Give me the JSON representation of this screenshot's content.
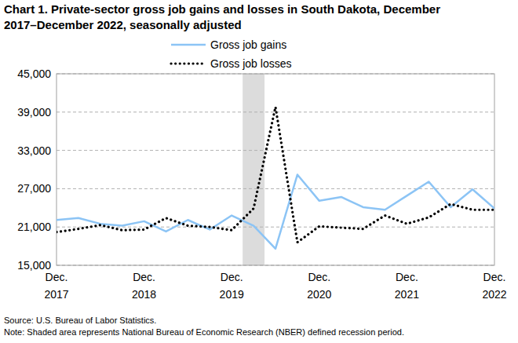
{
  "chart_data": {
    "type": "line",
    "title": "Chart 1. Private-sector gross job gains and losses in South Dakota, December 2017–December 2022, seasonally adjusted",
    "categories": [
      "Dec. 2017",
      null,
      null,
      null,
      "Dec. 2018",
      null,
      null,
      null,
      "Dec. 2019",
      null,
      null,
      null,
      "Dec. 2020",
      null,
      null,
      null,
      "Dec. 2021",
      null,
      null,
      null,
      "Dec. 2022"
    ],
    "series": [
      {
        "name": "Gross job gains",
        "color": "#8cc4f5",
        "line_style": "solid",
        "values": [
          22100,
          22400,
          21500,
          21200,
          21900,
          20300,
          22100,
          20600,
          22800,
          21200,
          17600,
          29200,
          25100,
          25700,
          24100,
          23700,
          25900,
          28100,
          24100,
          26900,
          23900
        ]
      },
      {
        "name": "Gross job losses",
        "color": "#000000",
        "line_style": "dotted",
        "values": [
          20200,
          20700,
          21300,
          20500,
          20600,
          22400,
          21200,
          21000,
          20500,
          23900,
          39800,
          18600,
          21100,
          20900,
          20700,
          22800,
          21500,
          22500,
          24600,
          23700,
          23700
        ]
      }
    ],
    "ylim": [
      15000,
      45000
    ],
    "yticks": [
      {
        "value": 15000,
        "label": "15,000"
      },
      {
        "value": 21000,
        "label": "21,000"
      },
      {
        "value": 27000,
        "label": "27,000"
      },
      {
        "value": 33000,
        "label": "33,000"
      },
      {
        "value": 39000,
        "label": "39,000"
      },
      {
        "value": 45000,
        "label": "45,000"
      }
    ],
    "grid": true,
    "legend": "top",
    "shaded_x": [
      8.5,
      9.5
    ],
    "annotations": [
      "Source: U.S. Bureau of Labor Statistics.",
      "Note: Shaded area represents National Bureau of Economic Research (NBER) defined recession period."
    ]
  }
}
